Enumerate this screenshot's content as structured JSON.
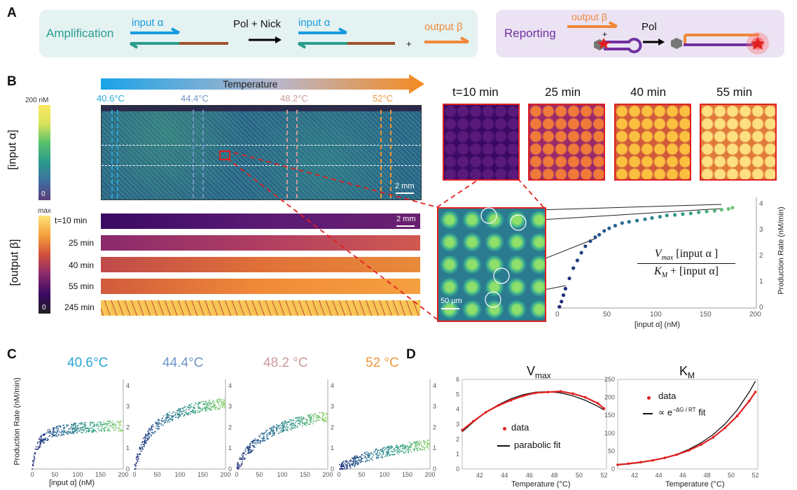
{
  "panels": {
    "a": "A",
    "b": "B",
    "c": "C",
    "d": "D"
  },
  "panel_a": {
    "amplification": "Amplification",
    "input_alpha": "input α",
    "arrow_label": "Pol + Nick",
    "input_alpha_2": "input α",
    "plus": "+",
    "output_beta": "output β",
    "reporting": "Reporting",
    "output_beta_2": "output β",
    "plus_2": "+",
    "pol": "Pol"
  },
  "panel_b": {
    "temperature": "Temperature",
    "temps": [
      "40.6°C",
      "44.4°C",
      "48.2°C",
      "52°C"
    ],
    "temp_colors": [
      "#29a8d6",
      "#6f95c6",
      "#cc9a9a",
      "#f0973a"
    ],
    "colorbar_top_max": "200 nM",
    "colorbar_top_min": "0",
    "colorbar_top_label": "[input α]",
    "colorbar_bottom_max": "max",
    "colorbar_bottom_min": "0",
    "colorbar_bottom_label": "[output β]",
    "scalebar_top": "2 mm",
    "scalebar_strip": "2 mm",
    "strip_times": [
      "t=10 min",
      "25 min",
      "40 min",
      "55 min",
      "245 min"
    ],
    "snapshot_times": [
      "t=10 min",
      "25 min",
      "40 min",
      "55 min"
    ],
    "zoom_scalebar": "50 μm",
    "scatter_ylabel": "Production Rate (nM/min)",
    "scatter_xlabel": "[input α] (nM)",
    "scatter_xticks": [
      "0",
      "50",
      "100",
      "150",
      "200"
    ],
    "scatter_yticks": [
      "0",
      "1",
      "2",
      "3",
      "4"
    ],
    "formula_num_vmax": "V",
    "formula_num_vmax_sub": "max",
    "formula_num_rest": "[input α ]",
    "formula_den": "K",
    "formula_den_sub": "M",
    "formula_den_rest": "+ [input α]"
  },
  "panel_c": {
    "titles": [
      "40.6°C",
      "44.4°C",
      "48.2 °C",
      "52 °C"
    ],
    "title_colors": [
      "#29a8d6",
      "#6f95c6",
      "#cc9a9a",
      "#f0973a"
    ],
    "ylabel": "Production Rate (nM/min)",
    "xlabel": "[input α] (nM)",
    "xticks": [
      "0",
      "50",
      "100",
      "150",
      "200"
    ],
    "yticks": [
      "0",
      "1",
      "2",
      "3",
      "4"
    ]
  },
  "panel_d": {
    "vmax_title": "V",
    "vmax_title_sub": "max",
    "km_title": "K",
    "km_title_sub": "M",
    "xlabel": "Temperature (°C)",
    "legend_data": "data",
    "legend_parabolic": "parabolic fit",
    "legend_data_2": "data",
    "legend_fit_prefix": "∝ e",
    "legend_fit_exp": "−ΔG / RT",
    "legend_fit_suffix": "fit"
  },
  "chart_data": [
    {
      "type": "scatter",
      "xlabel": "[input α] (nM)",
      "ylabel": "Production Rate (nM/min)",
      "xlim": [
        0,
        200
      ],
      "ylim": [
        0,
        4.3
      ],
      "x": [
        2,
        4,
        6,
        8,
        12,
        16,
        20,
        24,
        28,
        33,
        38,
        42,
        47,
        52,
        58,
        65,
        72,
        80,
        88,
        95,
        103,
        110,
        118,
        126,
        134,
        142,
        150,
        158,
        165,
        172,
        176
      ],
      "y": [
        0.05,
        0.25,
        0.5,
        0.75,
        1.15,
        1.55,
        1.85,
        2.15,
        2.4,
        2.6,
        2.75,
        2.85,
        3.0,
        3.1,
        3.2,
        3.3,
        3.35,
        3.4,
        3.45,
        3.5,
        3.55,
        3.6,
        3.62,
        3.65,
        3.68,
        3.72,
        3.75,
        3.78,
        3.82,
        3.85,
        3.9
      ]
    },
    {
      "type": "line",
      "title": "Vmax",
      "xlabel": "Temperature (°C)",
      "xlim": [
        40.6,
        52.2
      ],
      "ylim": [
        0,
        6
      ],
      "x": [
        40.6,
        41.5,
        42.5,
        43.5,
        44.5,
        45.5,
        46.5,
        47.5,
        48.5,
        49.5,
        50.5,
        51.5,
        52
      ],
      "series": [
        {
          "name": "data",
          "values": [
            2.6,
            3.2,
            3.8,
            4.25,
            4.6,
            4.9,
            5.1,
            5.15,
            5.2,
            5.05,
            4.8,
            4.4,
            4.05
          ]
        },
        {
          "name": "parabolic fit",
          "values": [
            2.5,
            3.15,
            3.8,
            4.3,
            4.7,
            4.98,
            5.14,
            5.18,
            5.1,
            4.9,
            4.6,
            4.2,
            3.95
          ]
        }
      ]
    },
    {
      "type": "line",
      "title": "KM",
      "xlabel": "Temperature (°C)",
      "xlim": [
        40.6,
        52.2
      ],
      "ylim": [
        0,
        250
      ],
      "x": [
        40.6,
        41.5,
        42.5,
        43.5,
        44.5,
        45.5,
        46.5,
        47.5,
        48.5,
        49.5,
        50.5,
        51.5,
        52
      ],
      "series": [
        {
          "name": "data",
          "values": [
            12,
            15,
            19,
            24,
            31,
            40,
            52,
            68,
            88,
            115,
            148,
            190,
            215
          ]
        },
        {
          "name": "∝ e^(−ΔG/RT) fit",
          "values": [
            11,
            14,
            18,
            24,
            31,
            41,
            55,
            73,
            96,
            126,
            165,
            215,
            245
          ]
        }
      ]
    }
  ]
}
